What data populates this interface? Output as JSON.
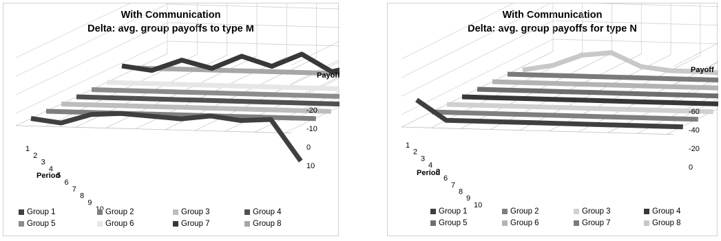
{
  "chart_data": [
    {
      "type": "line",
      "style": "3d-ribbon",
      "title": "With Communication",
      "subtitle": "Delta: avg. group payoffs to type M",
      "xlabel": "Period",
      "ylabel": "Payoff",
      "x": [
        1,
        2,
        3,
        4,
        5,
        6,
        7,
        8,
        9,
        10
      ],
      "y_ticks": [
        "10",
        "0",
        "-10",
        "-20"
      ],
      "ylim": [
        -20,
        10
      ],
      "series": [
        {
          "name": "Group 1",
          "color": "#3f3f3f",
          "values": [
            0,
            -2,
            3,
            4,
            3,
            2,
            4,
            2,
            3,
            -19
          ]
        },
        {
          "name": "Group 2",
          "color": "#7f7f7f",
          "values": [
            0,
            0,
            0,
            0,
            0,
            0,
            0,
            0,
            0,
            0
          ]
        },
        {
          "name": "Group 3",
          "color": "#bdbdbd",
          "values": [
            0,
            0,
            0,
            0,
            0,
            0,
            0,
            0,
            0,
            0
          ]
        },
        {
          "name": "Group 4",
          "color": "#505050",
          "values": [
            0,
            0,
            0,
            0,
            0,
            0,
            0,
            0,
            0,
            0
          ]
        },
        {
          "name": "Group 5",
          "color": "#8c8c8c",
          "values": [
            0,
            0,
            0,
            0,
            0,
            0,
            0,
            0,
            0,
            0
          ]
        },
        {
          "name": "Group 6",
          "color": "#e6e6e6",
          "values": [
            0,
            0,
            0,
            0,
            0,
            0,
            0,
            0,
            0,
            0
          ]
        },
        {
          "name": "Group 7",
          "color": "#383838",
          "values": [
            5,
            3,
            9,
            5,
            12,
            7,
            14,
            5,
            9,
            -3
          ]
        },
        {
          "name": "Group 8",
          "color": "#a6a6a6",
          "values": [
            0,
            0,
            0,
            0,
            0,
            0,
            0,
            0,
            0,
            0
          ]
        }
      ]
    },
    {
      "type": "line",
      "style": "3d-ribbon",
      "title": "With Communication",
      "subtitle": "Delta: avg. group payoffs for type N",
      "xlabel": "Period",
      "ylabel": "Payoff",
      "x": [
        1,
        2,
        3,
        4,
        5,
        6,
        7,
        8,
        9,
        10
      ],
      "y_ticks": [
        "0",
        "-20",
        "-40",
        "-60"
      ],
      "ylim": [
        -60,
        0
      ],
      "series": [
        {
          "name": "Group 1",
          "color": "#3f3f3f",
          "values": [
            30,
            0,
            0,
            0,
            0,
            0,
            0,
            0,
            0,
            0
          ]
        },
        {
          "name": "Group 2",
          "color": "#7f7f7f",
          "values": [
            0,
            0,
            0,
            0,
            0,
            0,
            0,
            0,
            0,
            0
          ]
        },
        {
          "name": "Group 3",
          "color": "#d0d0d0",
          "values": [
            0,
            0,
            0,
            0,
            0,
            0,
            0,
            0,
            0,
            0
          ]
        },
        {
          "name": "Group 4",
          "color": "#383838",
          "values": [
            0,
            0,
            0,
            0,
            0,
            0,
            0,
            0,
            0,
            0
          ]
        },
        {
          "name": "Group 5",
          "color": "#6e6e6e",
          "values": [
            0,
            0,
            0,
            0,
            0,
            0,
            0,
            0,
            0,
            0
          ]
        },
        {
          "name": "Group 6",
          "color": "#b3b3b3",
          "values": [
            0,
            0,
            0,
            0,
            0,
            0,
            0,
            0,
            0,
            0
          ]
        },
        {
          "name": "Group 7",
          "color": "#7a7a7a",
          "values": [
            0,
            0,
            0,
            0,
            0,
            0,
            0,
            0,
            0,
            0
          ]
        },
        {
          "name": "Group 8",
          "color": "#c8c8c8",
          "values": [
            -5,
            3,
            20,
            25,
            5,
            0,
            0,
            -2,
            -5,
            0
          ]
        }
      ]
    }
  ]
}
